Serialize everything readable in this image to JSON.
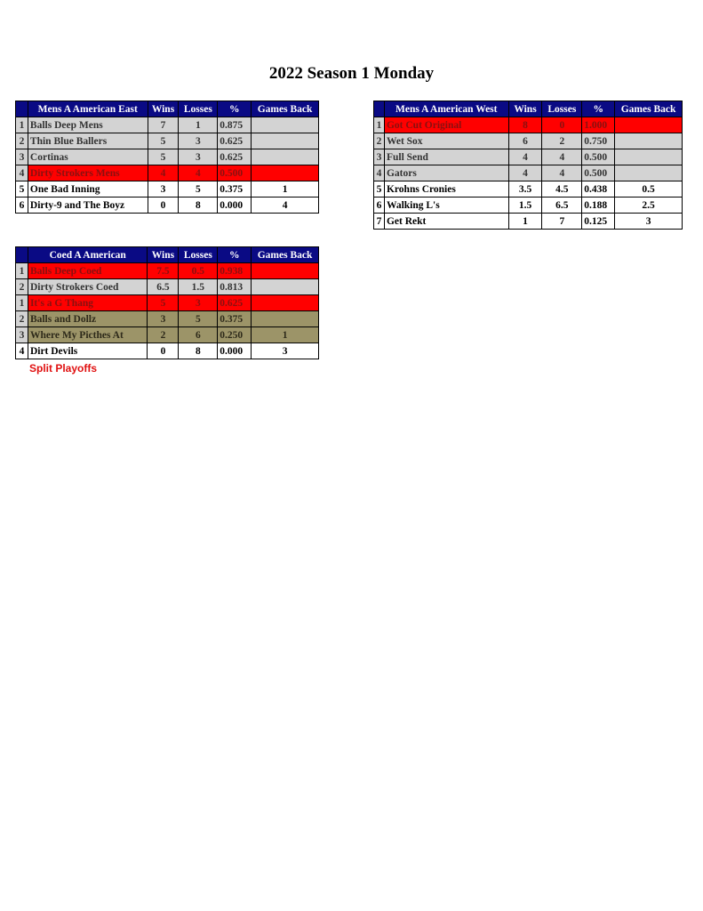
{
  "title": "2022 Season 1 Monday",
  "columns": {
    "wins": "Wins",
    "losses": "Losses",
    "pct": "%",
    "gb": "Games Back"
  },
  "tables": [
    {
      "division": "Mens A American East",
      "rows": [
        {
          "rank": "1",
          "team": "Balls Deep Mens",
          "wins": "7",
          "losses": "1",
          "pct": "0.875",
          "gb": "",
          "style": "gray"
        },
        {
          "rank": "2",
          "team": "Thin Blue Ballers",
          "wins": "5",
          "losses": "3",
          "pct": "0.625",
          "gb": "",
          "style": "gray"
        },
        {
          "rank": "3",
          "team": "Cortinas",
          "wins": "5",
          "losses": "3",
          "pct": "0.625",
          "gb": "",
          "style": "gray"
        },
        {
          "rank": "4",
          "team": "Dirty Strokers Mens",
          "wins": "4",
          "losses": "4",
          "pct": "0.500",
          "gb": "",
          "style": "red"
        },
        {
          "rank": "5",
          "team": "One Bad Inning",
          "wins": "3",
          "losses": "5",
          "pct": "0.375",
          "gb": "1",
          "style": "white"
        },
        {
          "rank": "6",
          "team": "Dirty-9 and The Boyz",
          "wins": "0",
          "losses": "8",
          "pct": "0.000",
          "gb": "4",
          "style": "white"
        }
      ]
    },
    {
      "division": "Mens A American West",
      "rows": [
        {
          "rank": "1",
          "team": "Got Cut Original",
          "wins": "8",
          "losses": "0",
          "pct": "1.000",
          "gb": "",
          "style": "red"
        },
        {
          "rank": "2",
          "team": "Wet Sox",
          "wins": "6",
          "losses": "2",
          "pct": "0.750",
          "gb": "",
          "style": "gray"
        },
        {
          "rank": "3",
          "team": "Full Send",
          "wins": "4",
          "losses": "4",
          "pct": "0.500",
          "gb": "",
          "style": "gray"
        },
        {
          "rank": "4",
          "team": "Gators",
          "wins": "4",
          "losses": "4",
          "pct": "0.500",
          "gb": "",
          "style": "gray"
        },
        {
          "rank": "5",
          "team": "Krohns Cronies",
          "wins": "3.5",
          "losses": "4.5",
          "pct": "0.438",
          "gb": "0.5",
          "style": "white"
        },
        {
          "rank": "6",
          "team": "Walking L's",
          "wins": "1.5",
          "losses": "6.5",
          "pct": "0.188",
          "gb": "2.5",
          "style": "white"
        },
        {
          "rank": "7",
          "team": "Get Rekt",
          "wins": "1",
          "losses": "7",
          "pct": "0.125",
          "gb": "3",
          "style": "white"
        }
      ]
    },
    {
      "division": "Coed A American",
      "rows": [
        {
          "rank": "1",
          "team": "Balls Deep Coed",
          "wins": "7.5",
          "losses": "0.5",
          "pct": "0.938",
          "gb": "",
          "style": "red"
        },
        {
          "rank": "2",
          "team": "Dirty Strokers Coed",
          "wins": "6.5",
          "losses": "1.5",
          "pct": "0.813",
          "gb": "",
          "style": "gray"
        },
        {
          "rank": "1",
          "team": "It's a G Thang",
          "wins": "5",
          "losses": "3",
          "pct": "0.625",
          "gb": "",
          "style": "red"
        },
        {
          "rank": "2",
          "team": "Balls and Dollz",
          "wins": "3",
          "losses": "5",
          "pct": "0.375",
          "gb": "",
          "style": "olive"
        },
        {
          "rank": "3",
          "team": "Where My Picthes At",
          "wins": "2",
          "losses": "6",
          "pct": "0.250",
          "gb": "1",
          "style": "olive"
        },
        {
          "rank": "4",
          "team": "Dirt Devils",
          "wins": "0",
          "losses": "8",
          "pct": "0.000",
          "gb": "3",
          "style": "white"
        }
      ]
    }
  ],
  "note": "Split Playoffs",
  "colors": {
    "header": "#0a0a84",
    "playoff_red": "#ff0000",
    "gray": "#d3d3d3",
    "olive": "#9c9468"
  }
}
